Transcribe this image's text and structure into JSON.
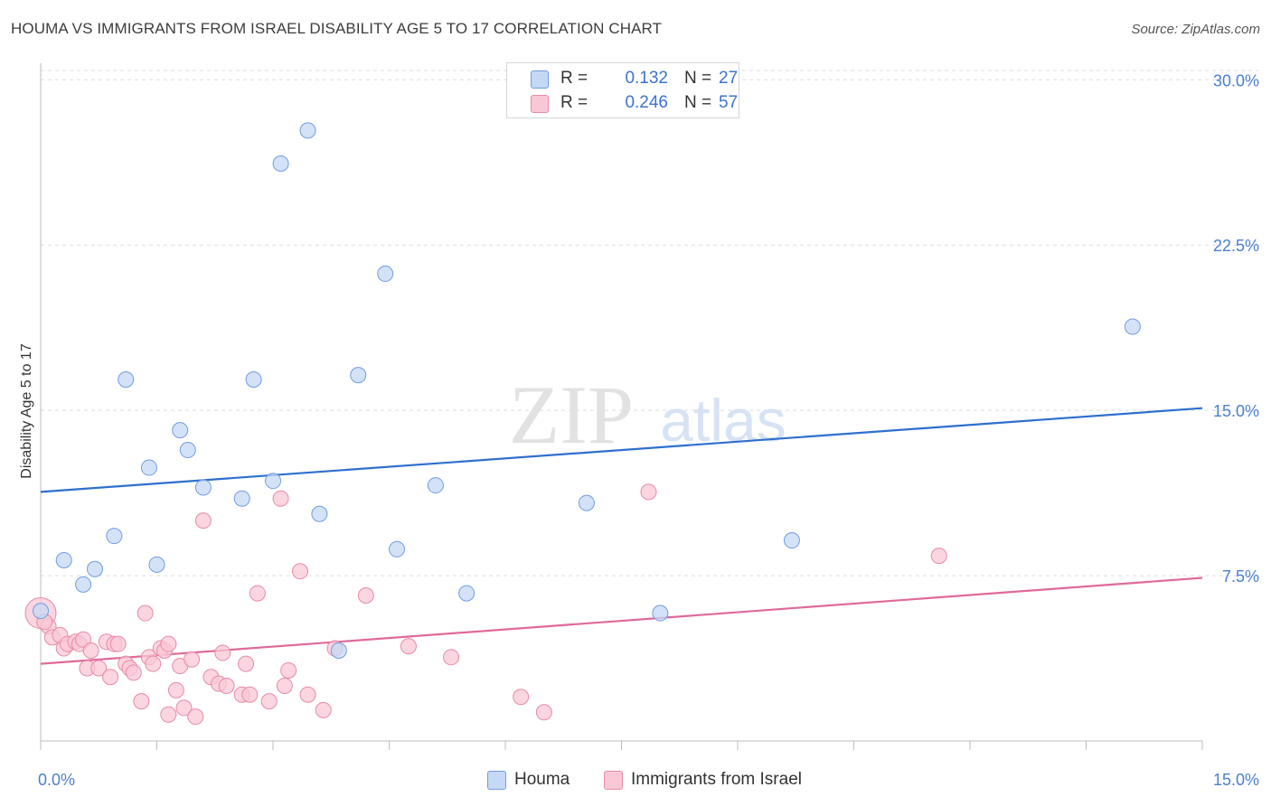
{
  "title": "HOUMA VS IMMIGRANTS FROM ISRAEL DISABILITY AGE 5 TO 17 CORRELATION CHART",
  "source": "Source: ZipAtlas.com",
  "watermark": {
    "zip": "ZIP",
    "atlas": "atlas"
  },
  "legend": {
    "r_label": "R =",
    "n_label": "N =",
    "rows": [
      {
        "r": "0.132",
        "n": "27",
        "color": "#a9c6f0",
        "border": "#6f9de0"
      },
      {
        "r": "0.246",
        "n": "57",
        "color": "#f7b9cc",
        "border": "#e88aa8"
      }
    ]
  },
  "bottom_legend": [
    "Houma",
    "Immigrants from Israel"
  ],
  "colors": {
    "houma_fill": "#c5d8f5",
    "houma_stroke": "#6f9de0",
    "houma_line": "#2e6fce",
    "israel_fill": "#f9c8d6",
    "israel_stroke": "#e88aa8",
    "israel_line": "#e0699a",
    "grid": "#dddddd",
    "tick_text": "#4a7fd0"
  },
  "chart_data": {
    "type": "scatter",
    "title": "HOUMA VS IMMIGRANTS FROM ISRAEL DISABILITY AGE 5 TO 17 CORRELATION CHART",
    "xlabel": "",
    "ylabel": "Disability Age 5 to 17",
    "xlim": [
      0,
      15
    ],
    "ylim": [
      0,
      30.75
    ],
    "x_tick_labels": [
      {
        "v": 0,
        "label": "0.0%"
      },
      {
        "v": 15,
        "label": "15.0%"
      }
    ],
    "y_tick_labels": [
      {
        "v": 7.5,
        "label": "7.5%"
      },
      {
        "v": 15,
        "label": "15.0%"
      },
      {
        "v": 22.5,
        "label": "22.5%"
      },
      {
        "v": 30,
        "label": "30.0%"
      }
    ],
    "grid": true,
    "legend_position": "top-center",
    "series": [
      {
        "name": "Houma",
        "r": 0.132,
        "n": 27,
        "trend": {
          "x": [
            0,
            15
          ],
          "y": [
            11.3,
            15.1
          ]
        },
        "points": [
          {
            "x": 0.0,
            "y": 5.9
          },
          {
            "x": 0.3,
            "y": 8.2
          },
          {
            "x": 0.55,
            "y": 7.1
          },
          {
            "x": 0.7,
            "y": 7.8
          },
          {
            "x": 0.95,
            "y": 9.3
          },
          {
            "x": 1.1,
            "y": 16.4
          },
          {
            "x": 1.4,
            "y": 12.4
          },
          {
            "x": 1.5,
            "y": 8.0
          },
          {
            "x": 1.8,
            "y": 14.1
          },
          {
            "x": 1.9,
            "y": 13.2
          },
          {
            "x": 2.1,
            "y": 11.5
          },
          {
            "x": 2.6,
            "y": 11.0
          },
          {
            "x": 2.75,
            "y": 16.4
          },
          {
            "x": 3.0,
            "y": 11.8
          },
          {
            "x": 3.1,
            "y": 26.2
          },
          {
            "x": 3.45,
            "y": 27.7
          },
          {
            "x": 3.6,
            "y": 10.3
          },
          {
            "x": 3.85,
            "y": 4.1
          },
          {
            "x": 4.1,
            "y": 16.6
          },
          {
            "x": 4.45,
            "y": 21.2
          },
          {
            "x": 4.6,
            "y": 8.7
          },
          {
            "x": 5.1,
            "y": 11.6
          },
          {
            "x": 5.5,
            "y": 6.7
          },
          {
            "x": 7.05,
            "y": 10.8
          },
          {
            "x": 8.0,
            "y": 5.8
          },
          {
            "x": 9.7,
            "y": 9.1
          },
          {
            "x": 14.1,
            "y": 18.8
          }
        ]
      },
      {
        "name": "Immigrants from Israel",
        "r": 0.246,
        "n": 57,
        "trend": {
          "x": [
            0,
            15
          ],
          "y": [
            3.5,
            7.4
          ]
        },
        "points": [
          {
            "x": 0.0,
            "y": 5.8,
            "big": true
          },
          {
            "x": 0.1,
            "y": 5.2
          },
          {
            "x": 0.15,
            "y": 4.7
          },
          {
            "x": 0.25,
            "y": 4.8
          },
          {
            "x": 0.3,
            "y": 4.2
          },
          {
            "x": 0.35,
            "y": 4.4
          },
          {
            "x": 0.45,
            "y": 4.5
          },
          {
            "x": 0.5,
            "y": 4.4
          },
          {
            "x": 0.55,
            "y": 4.6
          },
          {
            "x": 0.6,
            "y": 3.3
          },
          {
            "x": 0.65,
            "y": 4.1
          },
          {
            "x": 0.75,
            "y": 3.3
          },
          {
            "x": 0.85,
            "y": 4.5
          },
          {
            "x": 0.9,
            "y": 2.9
          },
          {
            "x": 0.95,
            "y": 4.4
          },
          {
            "x": 1.0,
            "y": 4.4
          },
          {
            "x": 1.1,
            "y": 3.5
          },
          {
            "x": 1.15,
            "y": 3.3
          },
          {
            "x": 1.2,
            "y": 3.1
          },
          {
            "x": 1.3,
            "y": 1.8
          },
          {
            "x": 1.35,
            "y": 5.8
          },
          {
            "x": 1.4,
            "y": 3.8
          },
          {
            "x": 1.45,
            "y": 3.5
          },
          {
            "x": 1.55,
            "y": 4.2
          },
          {
            "x": 1.6,
            "y": 4.1
          },
          {
            "x": 1.65,
            "y": 4.4
          },
          {
            "x": 1.65,
            "y": 1.2
          },
          {
            "x": 1.75,
            "y": 2.3
          },
          {
            "x": 1.8,
            "y": 3.4
          },
          {
            "x": 1.85,
            "y": 1.5
          },
          {
            "x": 1.95,
            "y": 3.7
          },
          {
            "x": 2.0,
            "y": 1.1
          },
          {
            "x": 2.1,
            "y": 10.0
          },
          {
            "x": 2.2,
            "y": 2.9
          },
          {
            "x": 2.3,
            "y": 2.6
          },
          {
            "x": 2.35,
            "y": 4.0
          },
          {
            "x": 2.4,
            "y": 2.5
          },
          {
            "x": 2.6,
            "y": 2.1
          },
          {
            "x": 2.65,
            "y": 3.5
          },
          {
            "x": 2.7,
            "y": 2.1
          },
          {
            "x": 2.8,
            "y": 6.7
          },
          {
            "x": 2.95,
            "y": 1.8
          },
          {
            "x": 3.1,
            "y": 11.0
          },
          {
            "x": 3.15,
            "y": 2.5
          },
          {
            "x": 3.2,
            "y": 3.2
          },
          {
            "x": 3.35,
            "y": 7.7
          },
          {
            "x": 3.45,
            "y": 2.1
          },
          {
            "x": 3.65,
            "y": 1.4
          },
          {
            "x": 3.8,
            "y": 4.2
          },
          {
            "x": 4.2,
            "y": 6.6
          },
          {
            "x": 4.75,
            "y": 4.3
          },
          {
            "x": 5.3,
            "y": 3.8
          },
          {
            "x": 6.2,
            "y": 2.0
          },
          {
            "x": 6.5,
            "y": 1.3
          },
          {
            "x": 7.85,
            "y": 11.3
          },
          {
            "x": 11.6,
            "y": 8.4
          },
          {
            "x": 0.05,
            "y": 5.4
          }
        ]
      }
    ]
  }
}
